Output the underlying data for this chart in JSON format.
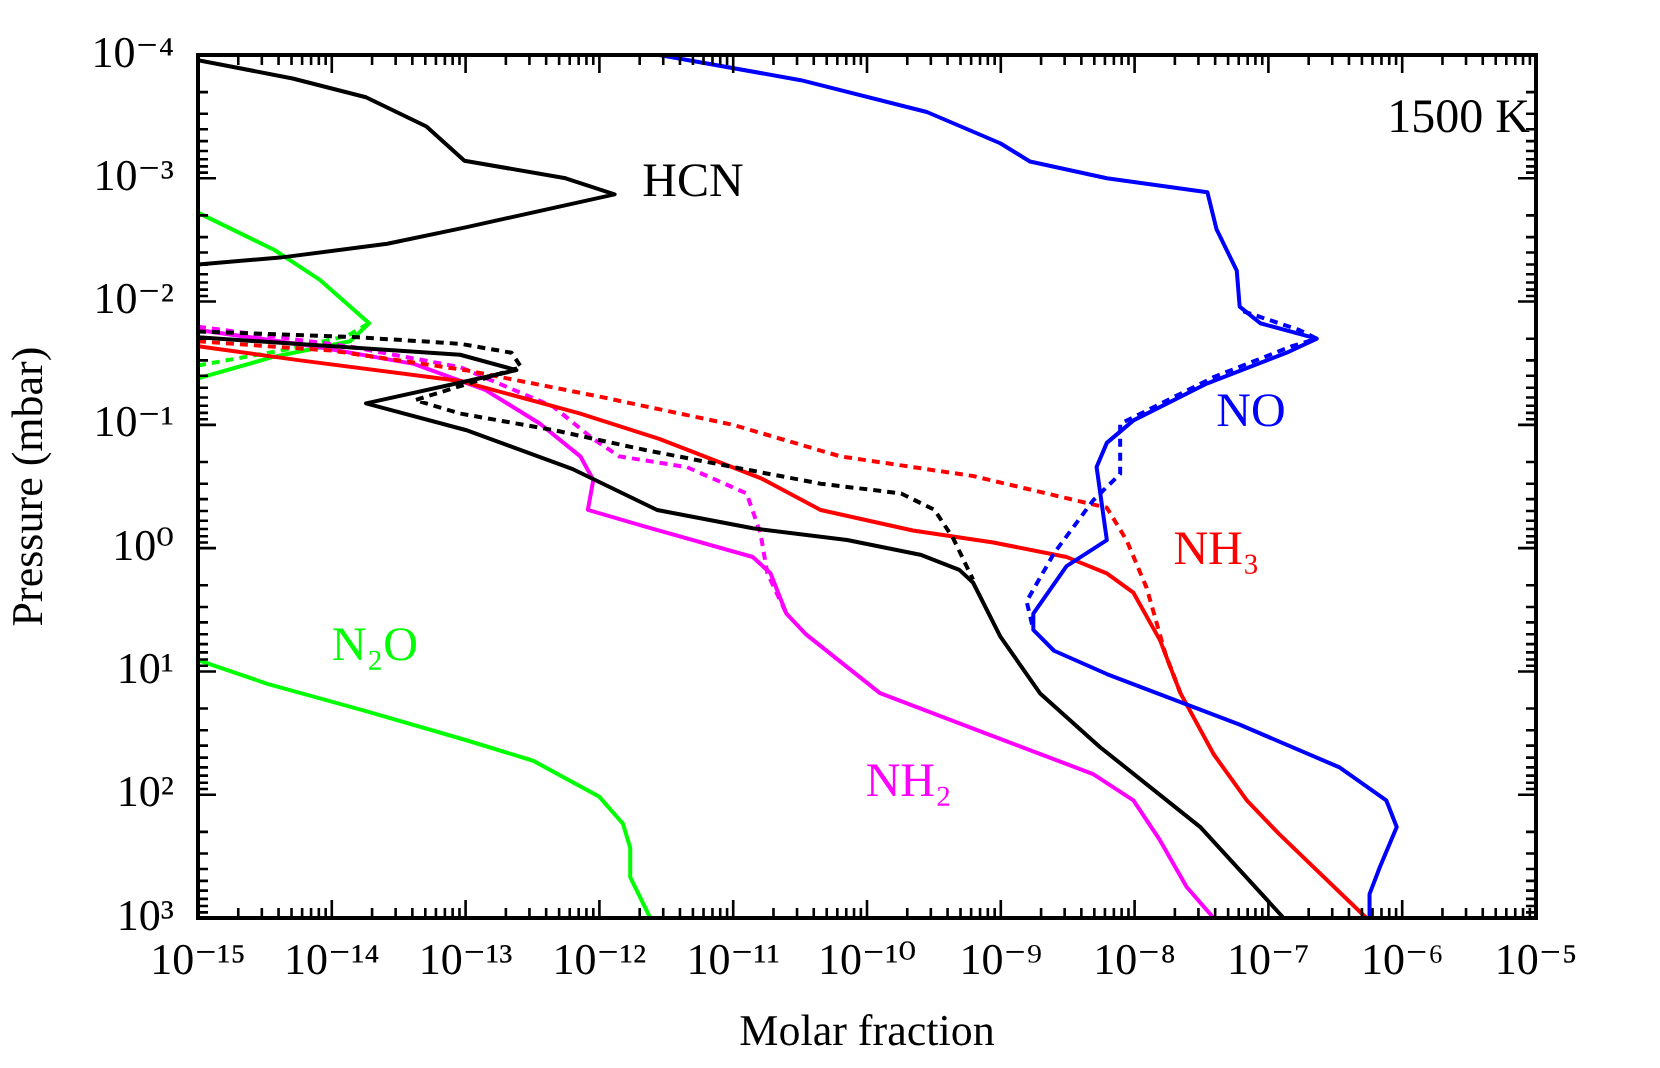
{
  "chart_data": {
    "type": "line",
    "xlabel": "Molar fraction",
    "ylabel": "Pressure (mbar)",
    "annotations": [
      "1500 K"
    ],
    "log": "xy",
    "xlim": [
      1e-15,
      1e-05
    ],
    "ylim": [
      1000,
      0.0001
    ],
    "xticks": [
      {
        "value": 1e-15,
        "label": "10⁻¹⁵"
      },
      {
        "value": 2e-15,
        "label": null
      },
      {
        "value": 3e-15,
        "label": null
      },
      {
        "value": 4e-15,
        "label": null
      },
      {
        "value": 5e-15,
        "label": null
      },
      {
        "value": 6e-15,
        "label": null
      },
      {
        "value": 7e-15,
        "label": null
      },
      {
        "value": 8e-15,
        "label": null
      },
      {
        "value": 9e-15,
        "label": null
      },
      {
        "value": 1e-14,
        "label": "10⁻¹⁴"
      },
      {
        "value": 2e-14,
        "label": null
      },
      {
        "value": 3e-14,
        "label": null
      },
      {
        "value": 4e-14,
        "label": null
      },
      {
        "value": 5e-14,
        "label": null
      },
      {
        "value": 6e-14,
        "label": null
      },
      {
        "value": 7e-14,
        "label": null
      },
      {
        "value": 8e-14,
        "label": null
      },
      {
        "value": 9e-14,
        "label": null
      },
      {
        "value": 1e-13,
        "label": "10⁻¹³"
      },
      {
        "value": 2e-13,
        "label": null
      },
      {
        "value": 3e-13,
        "label": null
      },
      {
        "value": 4e-13,
        "label": null
      },
      {
        "value": 5e-13,
        "label": null
      },
      {
        "value": 6e-13,
        "label": null
      },
      {
        "value": 7e-13,
        "label": null
      },
      {
        "value": 8e-13,
        "label": null
      },
      {
        "value": 9e-13,
        "label": null
      },
      {
        "value": 1e-12,
        "label": "10⁻¹²"
      },
      {
        "value": 2e-12,
        "label": null
      },
      {
        "value": 3e-12,
        "label": null
      },
      {
        "value": 4e-12,
        "label": null
      },
      {
        "value": 5e-12,
        "label": null
      },
      {
        "value": 6e-12,
        "label": null
      },
      {
        "value": 7e-12,
        "label": null
      },
      {
        "value": 8e-12,
        "label": null
      },
      {
        "value": 9e-12,
        "label": null
      },
      {
        "value": 1e-11,
        "label": "10⁻¹¹"
      },
      {
        "value": 2e-11,
        "label": null
      },
      {
        "value": 3e-11,
        "label": null
      },
      {
        "value": 4e-11,
        "label": null
      },
      {
        "value": 5e-11,
        "label": null
      },
      {
        "value": 6e-11,
        "label": null
      },
      {
        "value": 7e-11,
        "label": null
      },
      {
        "value": 8e-11,
        "label": null
      },
      {
        "value": 9e-11,
        "label": null
      },
      {
        "value": 1e-10,
        "label": "10⁻¹⁰"
      },
      {
        "value": 2e-10,
        "label": null
      },
      {
        "value": 3e-10,
        "label": null
      },
      {
        "value": 4e-10,
        "label": null
      },
      {
        "value": 5e-10,
        "label": null
      },
      {
        "value": 6e-10,
        "label": null
      },
      {
        "value": 7e-10,
        "label": null
      },
      {
        "value": 8e-10,
        "label": null
      },
      {
        "value": 9e-10,
        "label": null
      },
      {
        "value": 1e-09,
        "label": "10⁻⁹"
      },
      {
        "value": 2e-09,
        "label": null
      },
      {
        "value": 3e-09,
        "label": null
      },
      {
        "value": 4e-09,
        "label": null
      },
      {
        "value": 5e-09,
        "label": null
      },
      {
        "value": 6e-09,
        "label": null
      },
      {
        "value": 7e-09,
        "label": null
      },
      {
        "value": 8e-09,
        "label": null
      },
      {
        "value": 9e-09,
        "label": null
      },
      {
        "value": 1e-08,
        "label": "10⁻⁸"
      },
      {
        "value": 2e-08,
        "label": null
      },
      {
        "value": 3e-08,
        "label": null
      },
      {
        "value": 4e-08,
        "label": null
      },
      {
        "value": 5e-08,
        "label": null
      },
      {
        "value": 6e-08,
        "label": null
      },
      {
        "value": 7e-08,
        "label": null
      },
      {
        "value": 8e-08,
        "label": null
      },
      {
        "value": 9e-08,
        "label": null
      },
      {
        "value": 1e-07,
        "label": "10⁻⁷"
      },
      {
        "value": 2e-07,
        "label": null
      },
      {
        "value": 3e-07,
        "label": null
      },
      {
        "value": 4e-07,
        "label": null
      },
      {
        "value": 5e-07,
        "label": null
      },
      {
        "value": 6e-07,
        "label": null
      },
      {
        "value": 7e-07,
        "label": null
      },
      {
        "value": 8e-07,
        "label": null
      },
      {
        "value": 9e-07,
        "label": null
      },
      {
        "value": 1e-06,
        "label": "10⁻⁶"
      },
      {
        "value": 2e-06,
        "label": null
      },
      {
        "value": 3e-06,
        "label": null
      },
      {
        "value": 4e-06,
        "label": null
      },
      {
        "value": 5e-06,
        "label": null
      },
      {
        "value": 6e-06,
        "label": null
      },
      {
        "value": 7e-06,
        "label": null
      },
      {
        "value": 8e-06,
        "label": null
      },
      {
        "value": 9e-06,
        "label": null
      },
      {
        "value": 1e-05,
        "label": "10⁻⁵"
      }
    ],
    "yticks": [
      {
        "value": 0.0001,
        "label": "10⁻⁴"
      },
      {
        "value": 0.0002,
        "label": null
      },
      {
        "value": 0.0003,
        "label": null
      },
      {
        "value": 0.0004,
        "label": null
      },
      {
        "value": 0.0005,
        "label": null
      },
      {
        "value": 0.0006,
        "label": null
      },
      {
        "value": 0.0007,
        "label": null
      },
      {
        "value": 0.0008,
        "label": null
      },
      {
        "value": 0.0009,
        "label": null
      },
      {
        "value": 0.001,
        "label": "10⁻³"
      },
      {
        "value": 0.002,
        "label": null
      },
      {
        "value": 0.003,
        "label": null
      },
      {
        "value": 0.004,
        "label": null
      },
      {
        "value": 0.005,
        "label": null
      },
      {
        "value": 0.006,
        "label": null
      },
      {
        "value": 0.007,
        "label": null
      },
      {
        "value": 0.008,
        "label": null
      },
      {
        "value": 0.009,
        "label": null
      },
      {
        "value": 0.01,
        "label": "10⁻²"
      },
      {
        "value": 0.02,
        "label": null
      },
      {
        "value": 0.03,
        "label": null
      },
      {
        "value": 0.04,
        "label": null
      },
      {
        "value": 0.05,
        "label": null
      },
      {
        "value": 0.06,
        "label": null
      },
      {
        "value": 0.07,
        "label": null
      },
      {
        "value": 0.08,
        "label": null
      },
      {
        "value": 0.09,
        "label": null
      },
      {
        "value": 0.1,
        "label": "10⁻¹"
      },
      {
        "value": 0.2,
        "label": null
      },
      {
        "value": 0.3,
        "label": null
      },
      {
        "value": 0.4,
        "label": null
      },
      {
        "value": 0.5,
        "label": null
      },
      {
        "value": 0.6,
        "label": null
      },
      {
        "value": 0.7,
        "label": null
      },
      {
        "value": 0.8,
        "label": null
      },
      {
        "value": 0.9,
        "label": null
      },
      {
        "value": 1,
        "label": "10⁰"
      },
      {
        "value": 2,
        "label": null
      },
      {
        "value": 3,
        "label": null
      },
      {
        "value": 4,
        "label": null
      },
      {
        "value": 5,
        "label": null
      },
      {
        "value": 6,
        "label": null
      },
      {
        "value": 7,
        "label": null
      },
      {
        "value": 8,
        "label": null
      },
      {
        "value": 9,
        "label": null
      },
      {
        "value": 10,
        "label": "10¹"
      },
      {
        "value": 20,
        "label": null
      },
      {
        "value": 30,
        "label": null
      },
      {
        "value": 40,
        "label": null
      },
      {
        "value": 50,
        "label": null
      },
      {
        "value": 60,
        "label": null
      },
      {
        "value": 70,
        "label": null
      },
      {
        "value": 80,
        "label": null
      },
      {
        "value": 90,
        "label": null
      },
      {
        "value": 100,
        "label": "10²"
      },
      {
        "value": 200,
        "label": null
      },
      {
        "value": 300,
        "label": null
      },
      {
        "value": 400,
        "label": null
      },
      {
        "value": 500,
        "label": null
      },
      {
        "value": 600,
        "label": null
      },
      {
        "value": 700,
        "label": null
      },
      {
        "value": 800,
        "label": null
      },
      {
        "value": 900,
        "label": null
      },
      {
        "value": 1000,
        "label": "10³"
      }
    ],
    "series": [
      {
        "name": "HCN",
        "color": "#000000",
        "line_style": "solid",
        "x": [
          1e-15,
          5.1e-15,
          1.8e-14,
          5.1e-14,
          9.8e-14,
          5.6e-13,
          1.3e-12,
          1e-13,
          2.6e-14,
          4.1e-15,
          1e-15,
          null,
          1e-15,
          9.1e-14,
          2.4e-13,
          1.8e-14,
          1e-13,
          6.4e-13,
          2.7e-12,
          1.4e-11,
          7.1e-11,
          2.5e-10,
          4.9e-10,
          6.2e-10,
          9.9e-10,
          1.96e-09,
          5.5e-09,
          3.1e-08,
          1.3e-07
        ],
        "values": [
          0.00011,
          0.000155,
          0.00022,
          0.00038,
          0.00072,
          0.001,
          0.00135,
          0.0025,
          0.0034,
          0.0044,
          0.005,
          null,
          0.0195,
          0.027,
          0.036,
          0.067,
          0.11,
          0.23,
          0.49,
          0.69,
          0.86,
          1.13,
          1.5,
          1.9,
          5.2,
          15,
          41,
          183,
          1000
        ]
      },
      {
        "color": "#000000",
        "line_style": "dashed",
        "x": [
          1e-15,
          1.6e-14,
          9.1e-14,
          2.2e-13,
          2.6e-13,
          4.2e-14,
          9.1e-14,
          4.5e-13,
          2.2e-12,
          1e-11,
          4.5e-11,
          1.8e-10,
          3.2e-10,
          4.4e-10,
          6.2e-10
        ],
        "values": [
          0.0175,
          0.0195,
          0.022,
          0.026,
          0.034,
          0.063,
          0.081,
          0.11,
          0.16,
          0.22,
          0.3,
          0.36,
          0.49,
          0.83,
          1.8
        ]
      },
      {
        "name": "NO",
        "color": "#0000ff",
        "line_style": "solid",
        "x": [
          2.8e-12,
          3.2e-11,
          2.8e-10,
          9.9e-10,
          1.65e-09,
          6.2e-09,
          3.5e-08,
          4.1e-08,
          5.8e-08,
          6.1e-08,
          8.7e-08,
          2.3e-07,
          1.37e-07,
          3.5e-08,
          9.8e-09,
          6.2e-09,
          5.2e-09,
          6.2e-09,
          3.1e-09,
          1.75e-09,
          1.75e-09,
          2.5e-09,
          6.2e-09,
          6.1e-08,
          3.4e-07,
          7.6e-07,
          9.1e-07,
          6.8e-07,
          5.7e-07,
          5.7e-07
        ],
        "values": [
          0.0001,
          0.00016,
          0.00029,
          0.00052,
          0.00073,
          0.001,
          0.0013,
          0.0026,
          0.0056,
          0.011,
          0.015,
          0.02,
          0.026,
          0.046,
          0.092,
          0.14,
          0.22,
          0.86,
          1.4,
          3.4,
          4.6,
          6.8,
          10.5,
          27,
          60,
          111,
          183,
          387,
          640,
          1000
        ]
      },
      {
        "color": "#0000ff",
        "line_style": "dashed",
        "x": [
          6.5e-08,
          1.7e-07,
          2.3e-07,
          1.5e-07,
          3.9e-08,
          7.8e-09,
          7.8e-09,
          4.9e-09,
          2.5e-09,
          1.56e-09,
          1.75e-09
        ],
        "values": [
          0.012,
          0.017,
          0.02,
          0.023,
          0.041,
          0.098,
          0.25,
          0.41,
          1.1,
          2.7,
          4.6
        ]
      },
      {
        "name": "NH₃",
        "color": "#ff0000",
        "line_style": "solid",
        "x": [
          1e-15,
          5.8e-15,
          9.1e-14,
          7.2e-13,
          2.8e-12,
          1.6e-11,
          4.5e-11,
          2.2e-10,
          8.8e-10,
          3.1e-09,
          6.2e-09,
          9.8e-09,
          1.55e-08,
          2.2e-08,
          3.9e-08,
          6.9e-08,
          1.2e-07,
          5.4e-07
        ],
        "values": [
          0.023,
          0.03,
          0.044,
          0.081,
          0.13,
          0.27,
          0.49,
          0.72,
          0.9,
          1.18,
          1.6,
          2.3,
          5.6,
          15,
          47,
          111,
          208,
          1000
        ]
      },
      {
        "color": "#ff0000",
        "line_style": "dashed",
        "x": [
          1e-15,
          1e-14,
          1e-13,
          1e-12,
          1e-11,
          6.3e-11,
          6.2e-10,
          6.2e-09,
          8.7e-09,
          1.23e-08,
          1.7e-08,
          2.2e-08
        ],
        "values": [
          0.021,
          0.025,
          0.036,
          0.059,
          0.1,
          0.18,
          0.26,
          0.47,
          0.86,
          2.1,
          7.2,
          15
        ]
      },
      {
        "name": "NH₂",
        "color": "#ff00ff",
        "line_style": "solid",
        "x": [
          1e-15,
          7.3e-15,
          4.1e-14,
          1.4e-13,
          3.6e-13,
          7.2e-13,
          9e-13,
          8.2e-13,
          2.2e-12,
          1.4e-11,
          1.9e-11,
          2.5e-11,
          3.5e-11,
          1.25e-10,
          7.8e-10,
          4.9e-09,
          9.8e-09,
          1.55e-08,
          2.45e-08,
          3.9e-08
        ],
        "values": [
          0.017,
          0.023,
          0.032,
          0.052,
          0.098,
          0.18,
          0.28,
          0.49,
          0.67,
          1.18,
          1.6,
          3.4,
          5.0,
          15,
          32,
          68,
          111,
          235,
          560,
          1000
        ]
      },
      {
        "color": "#ff00ff",
        "line_style": "dashed",
        "x": [
          1e-15,
          1.3e-14,
          9.1e-14,
          4.5e-13,
          9e-13,
          1.4e-12,
          4.5e-12,
          1.26e-11,
          1.6e-11,
          1.8e-11,
          2.5e-11
        ],
        "values": [
          0.016,
          0.023,
          0.034,
          0.071,
          0.13,
          0.18,
          0.22,
          0.36,
          0.76,
          1.6,
          3.4
        ]
      },
      {
        "color": "#00ff00",
        "line_style": "dashed",
        "x": [
          1e-15,
          5.1e-15,
          1.3e-14,
          1.9e-14
        ],
        "values": [
          0.033,
          0.024,
          0.019,
          0.015
        ]
      },
      {
        "name": "N₂O",
        "color": "#00ff00",
        "line_style": "solid",
        "x": [
          1e-15,
          3.7e-15,
          8.2e-15,
          1.9e-14,
          1.37e-14,
          3.7e-15,
          1e-15,
          null,
          1e-15,
          3.3e-15,
          1.8e-14,
          1e-13,
          3.2e-13,
          1e-12,
          1.5e-12,
          1.7e-12,
          1.7e-12,
          2.4e-12
        ],
        "values": [
          0.0019,
          0.0038,
          0.0067,
          0.015,
          0.021,
          0.028,
          0.042,
          null,
          8.1,
          12.6,
          21,
          36,
          53,
          104,
          172,
          270,
          467,
          1000
        ]
      }
    ]
  }
}
